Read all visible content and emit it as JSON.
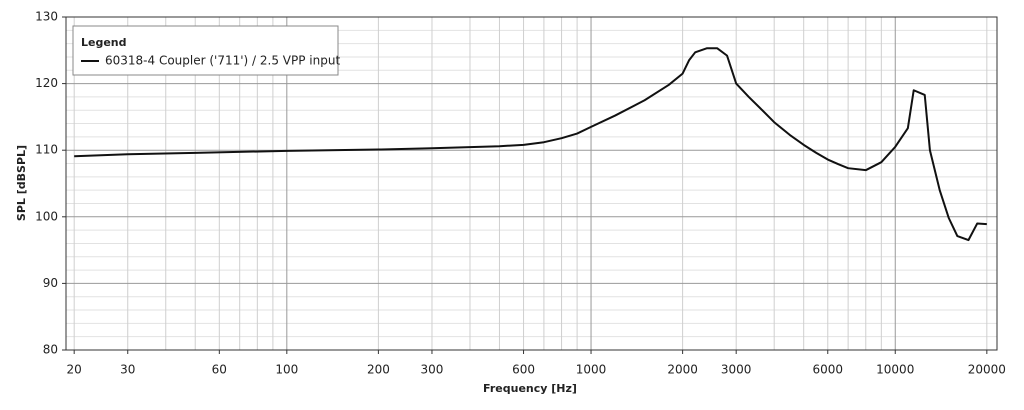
{
  "chart_data": {
    "type": "line",
    "xlabel": "Frequency [Hz]",
    "ylabel": "SPL [dBSPL]",
    "legend_title": "Legend",
    "legend_position": "upper left",
    "xscale": "log",
    "grid": true,
    "xlim": [
      18.8,
      21600
    ],
    "ylim": [
      80,
      130
    ],
    "xticks": [
      20,
      30,
      60,
      100,
      200,
      300,
      600,
      1000,
      2000,
      3000,
      6000,
      10000,
      20000
    ],
    "yticks": [
      80,
      90,
      100,
      110,
      120,
      130
    ],
    "x_minor_ticks": [
      20,
      30,
      40,
      50,
      60,
      70,
      80,
      90,
      100,
      200,
      300,
      400,
      500,
      600,
      700,
      800,
      900,
      1000,
      2000,
      3000,
      4000,
      5000,
      6000,
      7000,
      8000,
      9000,
      10000,
      20000
    ],
    "y_minor_ticks": [
      82,
      84,
      86,
      88,
      92,
      94,
      96,
      98,
      102,
      104,
      106,
      108,
      112,
      114,
      116,
      118,
      122,
      124,
      126,
      128
    ],
    "x": [
      20,
      30,
      50,
      100,
      200,
      300,
      500,
      600,
      700,
      800,
      900,
      1000,
      1200,
      1500,
      1800,
      2000,
      2100,
      2200,
      2400,
      2600,
      2800,
      3000,
      3300,
      3600,
      4000,
      4500,
      5000,
      5500,
      6000,
      6500,
      7000,
      8000,
      9000,
      10000,
      11000,
      11500,
      12500,
      13000,
      14000,
      15000,
      16000,
      17400,
      18600,
      20000
    ],
    "series": [
      {
        "name": "60318-4 Coupler ('711') / 2.5 VPP input",
        "color": "#111111",
        "values": [
          109.1,
          109.4,
          109.6,
          109.9,
          110.1,
          110.3,
          110.6,
          110.8,
          111.2,
          111.8,
          112.5,
          113.5,
          115.2,
          117.5,
          119.8,
          121.5,
          123.5,
          124.7,
          125.3,
          125.3,
          124.2,
          120.0,
          118.0,
          116.3,
          114.2,
          112.3,
          110.8,
          109.6,
          108.6,
          107.9,
          107.3,
          107.0,
          108.2,
          110.5,
          113.3,
          119.0,
          118.3,
          110.0,
          104.0,
          99.8,
          97.1,
          96.5,
          99.0,
          98.9
        ]
      }
    ]
  }
}
